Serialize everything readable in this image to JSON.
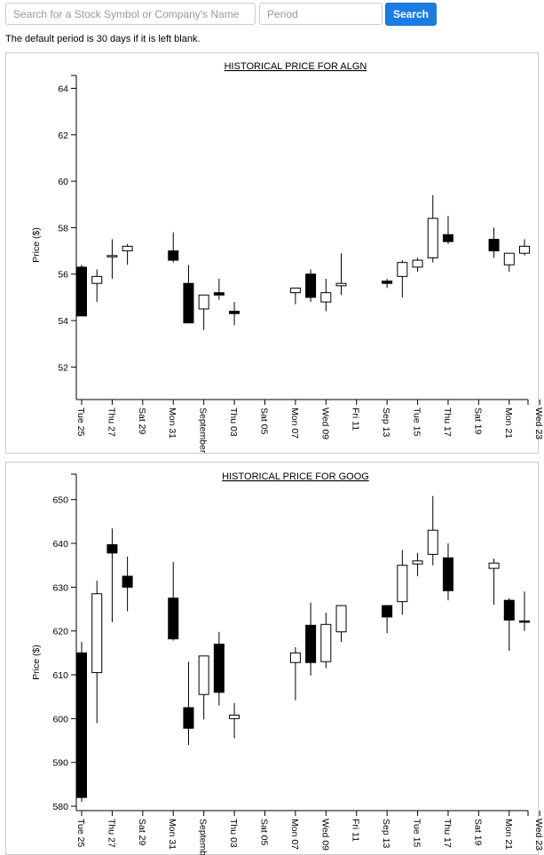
{
  "search": {
    "symbol_placeholder": "Search for a Stock Symbol or Company's Name",
    "period_placeholder": "Period",
    "button_label": "Search"
  },
  "note": "The default period is 30 days if it is left blank.",
  "colors": {
    "button": "#1a7de6",
    "up": "#ffffff",
    "down": "#000000"
  },
  "chart_data": [
    {
      "type": "candlestick",
      "title": "HISTORICAL PRICE FOR ALGN",
      "ylabel": "Price ($)",
      "ylim": [
        50.6,
        64.4
      ],
      "yticks": [
        52,
        54,
        56,
        58,
        60,
        62,
        64
      ],
      "x_ticks": [
        "Tue 25",
        "Thu 27",
        "Sat 29",
        "Mon 31",
        "September",
        "Thu 03",
        "Sat 05",
        "Mon 07",
        "Wed 09",
        "Fri 11",
        "Sep 13",
        "Tue 15",
        "Thu 17",
        "Sat 19",
        "Mon 21",
        "Wed 23"
      ],
      "candles": [
        {
          "day": 0,
          "open": 56.3,
          "close": 54.2,
          "high": 56.4,
          "low": 54.2
        },
        {
          "day": 1,
          "open": 55.6,
          "close": 55.9,
          "high": 56.2,
          "low": 54.8
        },
        {
          "day": 2,
          "open": 56.8,
          "close": 56.8,
          "high": 57.5,
          "low": 55.8
        },
        {
          "day": 3,
          "open": 57.0,
          "close": 57.2,
          "high": 57.3,
          "low": 56.4
        },
        {
          "day": 6,
          "open": 57.0,
          "close": 56.6,
          "high": 57.8,
          "low": 56.5
        },
        {
          "day": 7,
          "open": 55.6,
          "close": 53.9,
          "high": 56.4,
          "low": 53.9
        },
        {
          "day": 8,
          "open": 54.5,
          "close": 55.1,
          "high": 55.1,
          "low": 53.6
        },
        {
          "day": 9,
          "open": 55.2,
          "close": 55.1,
          "high": 55.8,
          "low": 54.9
        },
        {
          "day": 10,
          "open": 54.4,
          "close": 54.3,
          "high": 54.8,
          "low": 53.8
        },
        {
          "day": 14,
          "open": 55.2,
          "close": 55.4,
          "high": 55.4,
          "low": 54.7
        },
        {
          "day": 15,
          "open": 56.0,
          "close": 55.0,
          "high": 56.2,
          "low": 54.8
        },
        {
          "day": 16,
          "open": 54.8,
          "close": 55.2,
          "high": 55.8,
          "low": 54.4
        },
        {
          "day": 17,
          "open": 55.5,
          "close": 55.6,
          "high": 56.9,
          "low": 55.1
        },
        {
          "day": 20,
          "open": 55.7,
          "close": 55.6,
          "high": 55.8,
          "low": 55.4
        },
        {
          "day": 21,
          "open": 55.9,
          "close": 56.5,
          "high": 56.6,
          "low": 55.0
        },
        {
          "day": 22,
          "open": 56.3,
          "close": 56.6,
          "high": 56.7,
          "low": 56.1
        },
        {
          "day": 23,
          "open": 56.7,
          "close": 58.4,
          "high": 59.4,
          "low": 56.5
        },
        {
          "day": 24,
          "open": 57.7,
          "close": 57.4,
          "high": 58.5,
          "low": 57.3
        },
        {
          "day": 27,
          "open": 57.5,
          "close": 57.0,
          "high": 58.0,
          "low": 56.7
        },
        {
          "day": 28,
          "open": 56.4,
          "close": 56.9,
          "high": 56.9,
          "low": 56.1
        },
        {
          "day": 29,
          "open": 56.9,
          "close": 57.2,
          "high": 57.5,
          "low": 56.8
        }
      ]
    },
    {
      "type": "candlestick",
      "title": "HISTORICAL PRICE FOR GOOG",
      "ylabel": "Price ($)",
      "ylim": [
        579,
        655
      ],
      "yticks": [
        580,
        590,
        600,
        610,
        620,
        630,
        640,
        650
      ],
      "x_ticks": [
        "Tue 25",
        "Thu 27",
        "Sat 29",
        "Mon 31",
        "Septemb",
        "Thu 03",
        "Sat 05",
        "Mon 07",
        "Wed 09",
        "Fri 11",
        "Sep 13",
        "Tue 15",
        "Thu 17",
        "Sat 19",
        "Mon 21",
        "Wed 23"
      ],
      "candles": [
        {
          "day": 0,
          "open": 615.0,
          "close": 582.0,
          "high": 617.5,
          "low": 581.0
        },
        {
          "day": 1,
          "open": 610.5,
          "close": 628.5,
          "high": 631.5,
          "low": 599.0
        },
        {
          "day": 2,
          "open": 639.7,
          "close": 637.8,
          "high": 643.4,
          "low": 622.0
        },
        {
          "day": 3,
          "open": 632.5,
          "close": 630.0,
          "high": 637.0,
          "low": 624.5
        },
        {
          "day": 6,
          "open": 627.5,
          "close": 618.2,
          "high": 635.8,
          "low": 617.8
        },
        {
          "day": 7,
          "open": 602.5,
          "close": 597.8,
          "high": 613.0,
          "low": 594.0
        },
        {
          "day": 8,
          "open": 605.5,
          "close": 614.3,
          "high": 614.3,
          "low": 599.8
        },
        {
          "day": 9,
          "open": 617.0,
          "close": 606.0,
          "high": 619.8,
          "low": 603.0
        },
        {
          "day": 10,
          "open": 600.0,
          "close": 600.8,
          "high": 603.5,
          "low": 595.5
        },
        {
          "day": 14,
          "open": 612.8,
          "close": 615.0,
          "high": 616.3,
          "low": 604.2
        },
        {
          "day": 15,
          "open": 621.3,
          "close": 612.8,
          "high": 626.5,
          "low": 609.8
        },
        {
          "day": 16,
          "open": 613.0,
          "close": 621.5,
          "high": 624.2,
          "low": 611.5
        },
        {
          "day": 17,
          "open": 619.8,
          "close": 625.8,
          "high": 625.8,
          "low": 617.5
        },
        {
          "day": 20,
          "open": 625.8,
          "close": 623.2,
          "high": 625.8,
          "low": 619.5
        },
        {
          "day": 21,
          "open": 626.7,
          "close": 635.0,
          "high": 638.5,
          "low": 623.7
        },
        {
          "day": 22,
          "open": 635.3,
          "close": 636.0,
          "high": 637.8,
          "low": 632.5
        },
        {
          "day": 23,
          "open": 637.5,
          "close": 643.0,
          "high": 650.8,
          "low": 635.0
        },
        {
          "day": 24,
          "open": 636.7,
          "close": 629.2,
          "high": 640.0,
          "low": 627.0
        },
        {
          "day": 27,
          "open": 634.3,
          "close": 635.5,
          "high": 636.5,
          "low": 626.0
        },
        {
          "day": 28,
          "open": 627.0,
          "close": 622.5,
          "high": 627.5,
          "low": 615.5
        },
        {
          "day": 29,
          "open": 622.3,
          "close": 622.0,
          "high": 629.0,
          "low": 620.0
        }
      ]
    }
  ]
}
